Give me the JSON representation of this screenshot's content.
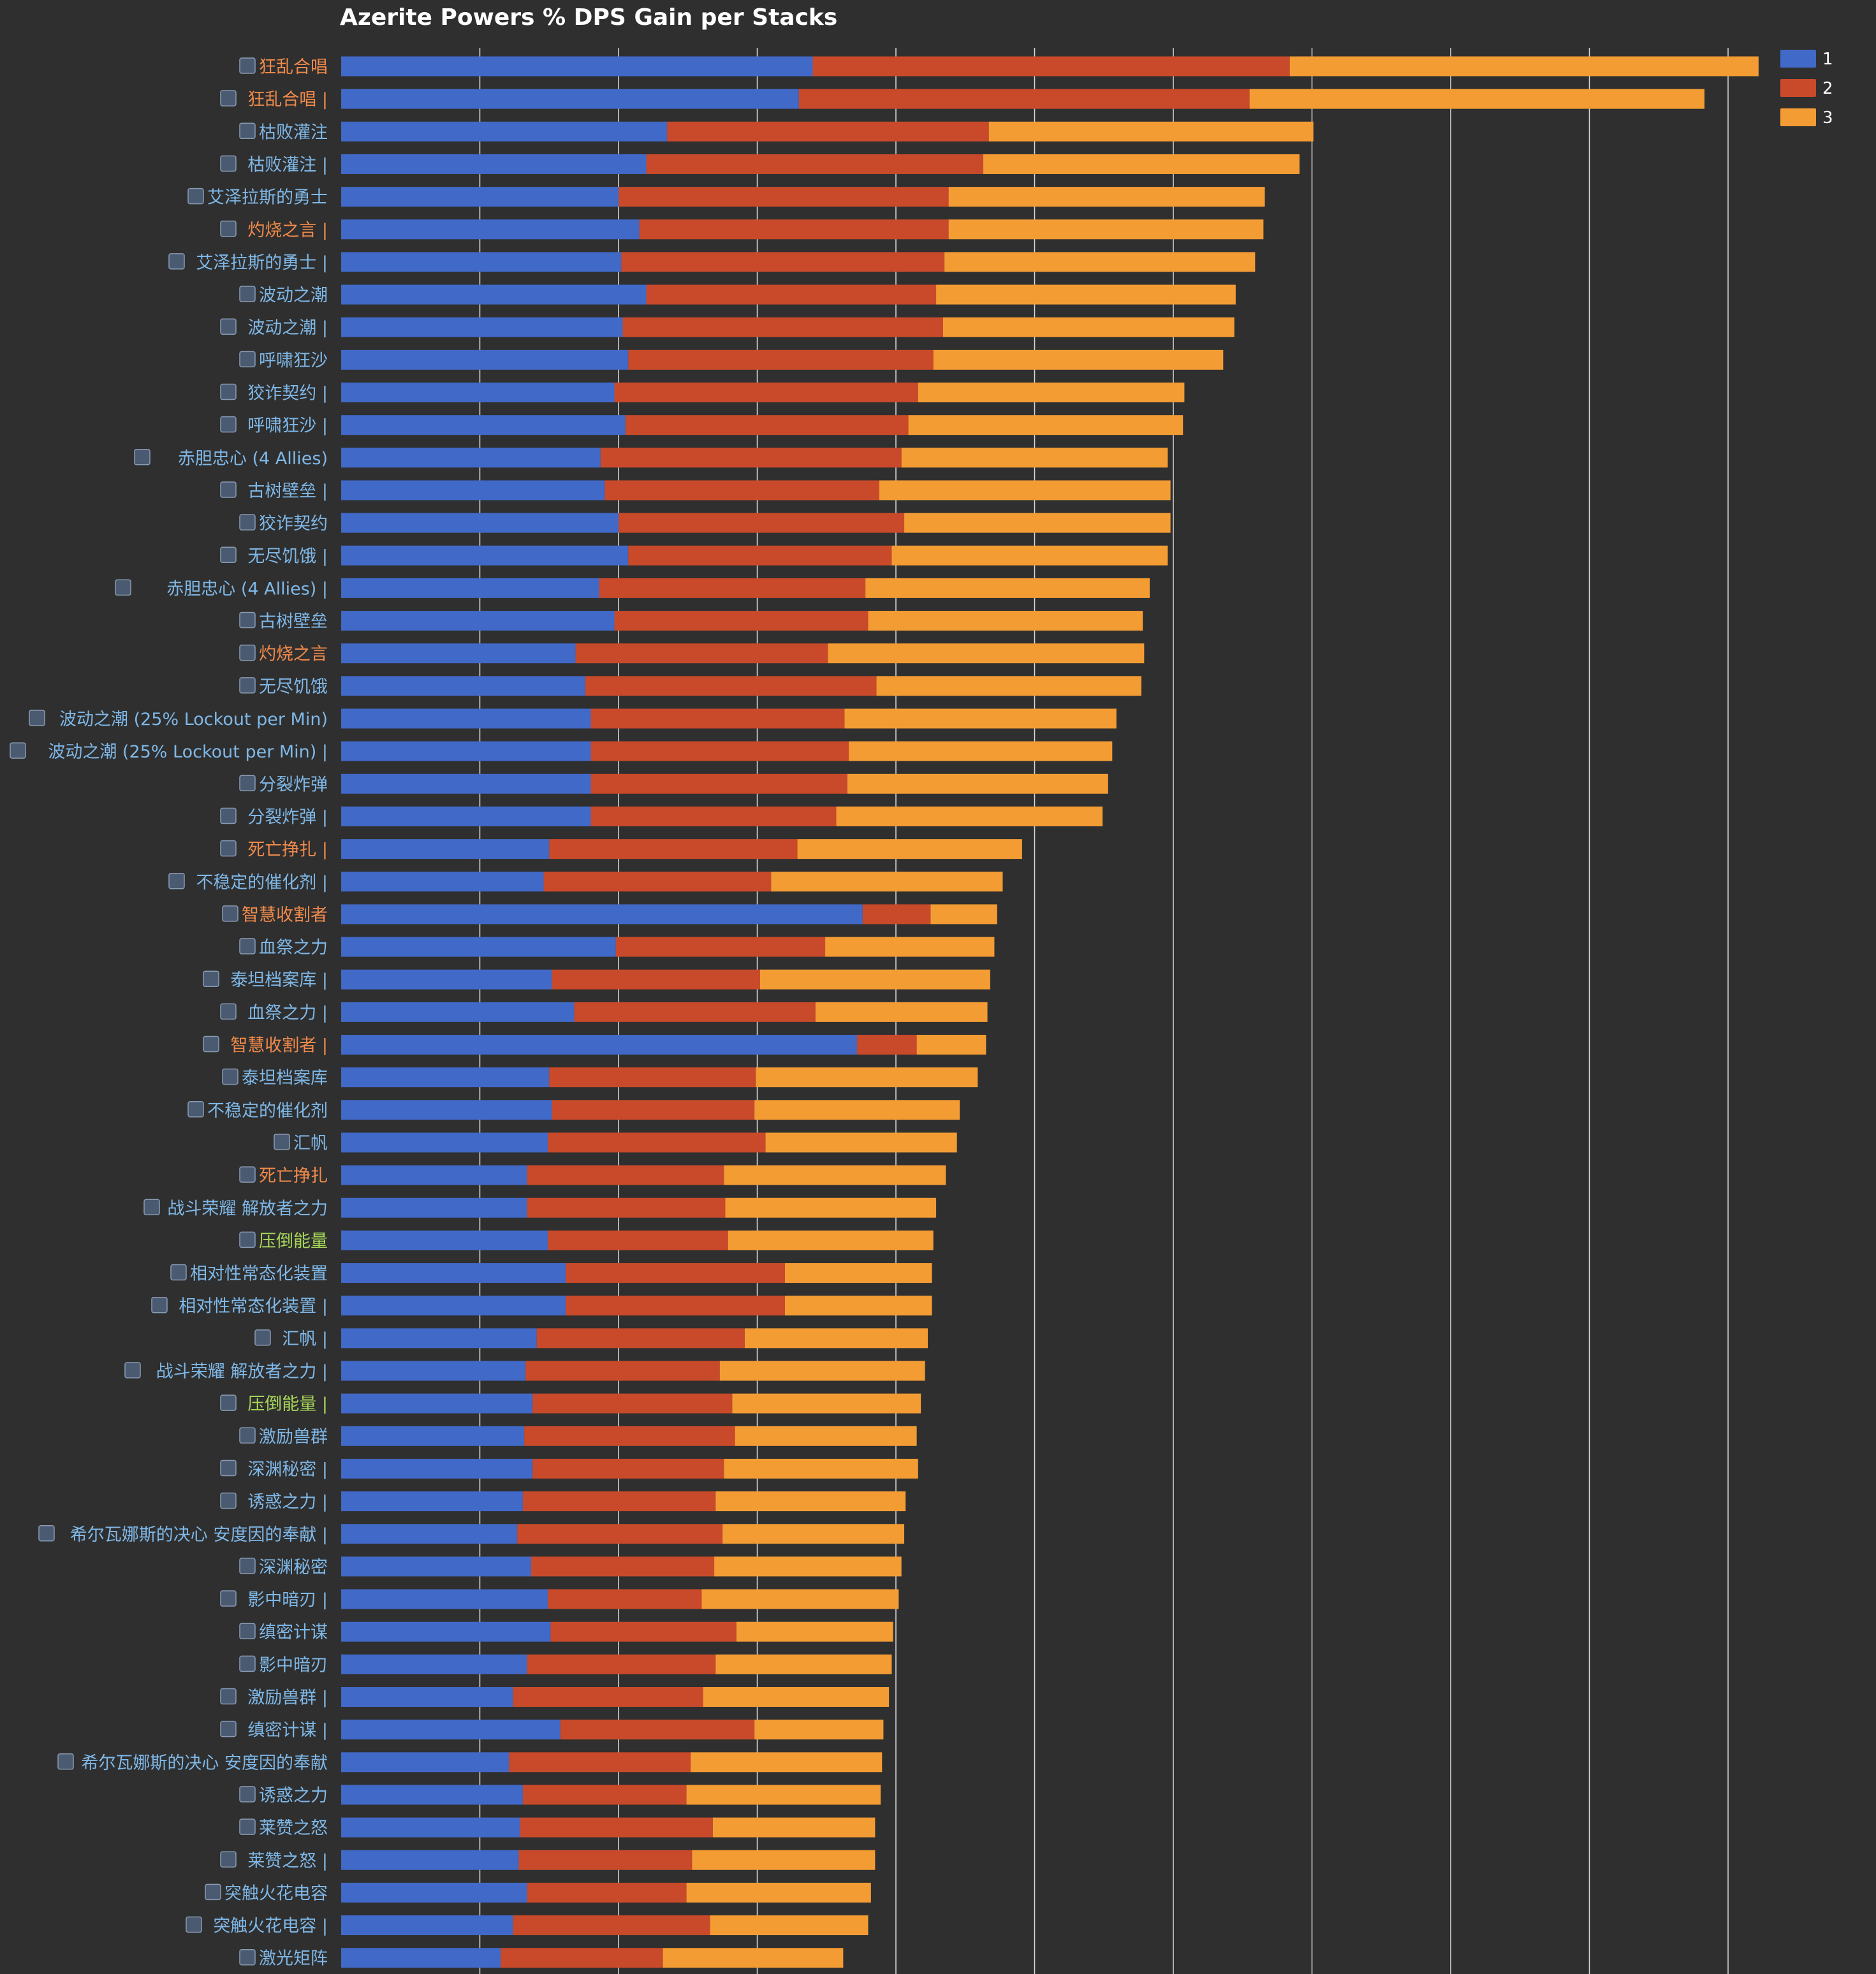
{
  "chart_data": {
    "type": "bar",
    "orientation": "horizontal",
    "stacked": true,
    "title": "Azerite Powers % DPS Gain per Stacks",
    "xlabel": "",
    "ylabel": "",
    "xlim": [
      0,
      10.4
    ],
    "grid": true,
    "legend_position": "top-right",
    "categories": [
      "狂乱合唱",
      "狂乱合唱 |",
      "枯败灌注",
      "枯败灌注 |",
      "艾泽拉斯的勇士",
      "灼烧之言 |",
      "艾泽拉斯的勇士 |",
      "波动之潮",
      "波动之潮 |",
      "呼啸狂沙",
      "狡诈契约 |",
      "呼啸狂沙 |",
      "赤胆忠心 (4 Allies)",
      "古树壁垒 |",
      "狡诈契约",
      "无尽饥饿 |",
      "赤胆忠心 (4 Allies) |",
      "古树壁垒",
      "灼烧之言",
      "无尽饥饿",
      "波动之潮 (25% Lockout per Min)",
      "波动之潮 (25% Lockout per Min) |",
      "分裂炸弹",
      "分裂炸弹 |",
      "死亡挣扎 |",
      "不稳定的催化剂 |",
      "智慧收割者",
      "血祭之力",
      "泰坦档案库 |",
      "血祭之力 |",
      "智慧收割者 |",
      "泰坦档案库",
      "不稳定的催化剂",
      "汇帆",
      "死亡挣扎",
      "战斗荣耀 解放者之力",
      "压倒能量",
      "相对性常态化装置",
      "相对性常态化装置 |",
      "汇帆 |",
      "战斗荣耀 解放者之力 |",
      "压倒能量 |",
      "激励兽群",
      "深渊秘密 |",
      "诱惑之力 |",
      "希尔瓦娜斯的决心 安度因的奉献 |",
      "深渊秘密",
      "影中暗刃 |",
      "缜密计谋",
      "影中暗刃",
      "激励兽群 |",
      "缜密计谋 |",
      "希尔瓦娜斯的决心 安度因的奉献",
      "诱惑之力",
      "莱赞之怒",
      "莱赞之怒 |",
      "突触火花电容",
      "突触火花电容 |",
      "激光矩阵"
    ],
    "label_colors": [
      "#f08a4b",
      "#f08a4b",
      "#7fb8e8",
      "#7fb8e8",
      "#7fb8e8",
      "#f08a4b",
      "#7fb8e8",
      "#7fb8e8",
      "#7fb8e8",
      "#7fb8e8",
      "#7fb8e8",
      "#7fb8e8",
      "#7fb8e8",
      "#7fb8e8",
      "#7fb8e8",
      "#7fb8e8",
      "#7fb8e8",
      "#7fb8e8",
      "#f08a4b",
      "#7fb8e8",
      "#7fb8e8",
      "#7fb8e8",
      "#7fb8e8",
      "#7fb8e8",
      "#f08a4b",
      "#7fb8e8",
      "#f08a4b",
      "#7fb8e8",
      "#7fb8e8",
      "#7fb8e8",
      "#f08a4b",
      "#7fb8e8",
      "#7fb8e8",
      "#7fb8e8",
      "#f08a4b",
      "#7fb8e8",
      "#a8d85a",
      "#7fb8e8",
      "#7fb8e8",
      "#7fb8e8",
      "#7fb8e8",
      "#a8d85a",
      "#7fb8e8",
      "#7fb8e8",
      "#7fb8e8",
      "#7fb8e8",
      "#7fb8e8",
      "#7fb8e8",
      "#7fb8e8",
      "#7fb8e8",
      "#7fb8e8",
      "#7fb8e8",
      "#7fb8e8",
      "#7fb8e8",
      "#7fb8e8",
      "#7fb8e8",
      "#7fb8e8",
      "#7fb8e8",
      "#7fb8e8"
    ],
    "series": [
      {
        "name": "1",
        "color": "#4169c8",
        "values": [
          3.4,
          3.3,
          2.35,
          2.2,
          2.0,
          2.15,
          2.02,
          2.2,
          2.03,
          2.07,
          1.97,
          2.05,
          1.87,
          1.9,
          2.0,
          2.07,
          1.86,
          1.97,
          1.69,
          1.76,
          1.8,
          1.8,
          1.8,
          1.8,
          1.5,
          1.46,
          3.76,
          1.98,
          1.52,
          1.68,
          3.72,
          1.5,
          1.52,
          1.49,
          1.34,
          1.34,
          1.49,
          1.62,
          1.62,
          1.41,
          1.33,
          1.38,
          1.32,
          1.38,
          1.31,
          1.27,
          1.37,
          1.49,
          1.51,
          1.34,
          1.24,
          1.58,
          1.21,
          1.31,
          1.29,
          1.28,
          1.34,
          1.24,
          1.15
        ]
      },
      {
        "name": "2",
        "color": "#c94a2a",
        "values": [
          3.44,
          3.25,
          2.32,
          2.43,
          2.38,
          2.23,
          2.33,
          2.09,
          2.31,
          2.2,
          2.19,
          2.04,
          2.17,
          1.98,
          2.06,
          1.9,
          1.92,
          1.83,
          1.82,
          2.1,
          1.83,
          1.86,
          1.85,
          1.77,
          1.79,
          1.64,
          0.49,
          1.51,
          1.5,
          1.74,
          0.43,
          1.49,
          1.46,
          1.57,
          1.42,
          1.43,
          1.3,
          1.58,
          1.58,
          1.5,
          1.4,
          1.44,
          1.52,
          1.38,
          1.39,
          1.48,
          1.32,
          1.11,
          1.34,
          1.36,
          1.37,
          1.4,
          1.31,
          1.18,
          1.39,
          1.25,
          1.15,
          1.42,
          1.17
        ]
      },
      {
        "name": "3",
        "color": "#f39c34",
        "values": [
          3.38,
          3.28,
          2.34,
          2.28,
          2.28,
          2.27,
          2.24,
          2.16,
          2.1,
          2.09,
          1.92,
          1.98,
          1.92,
          2.1,
          1.92,
          1.99,
          2.05,
          1.98,
          2.28,
          1.91,
          1.96,
          1.9,
          1.88,
          1.92,
          1.62,
          1.67,
          0.48,
          1.22,
          1.66,
          1.24,
          0.5,
          1.6,
          1.48,
          1.38,
          1.6,
          1.52,
          1.48,
          1.06,
          1.06,
          1.32,
          1.48,
          1.36,
          1.31,
          1.4,
          1.37,
          1.31,
          1.35,
          1.42,
          1.13,
          1.27,
          1.34,
          0.93,
          1.38,
          1.4,
          1.17,
          1.32,
          1.33,
          1.14,
          1.3
        ]
      }
    ]
  }
}
